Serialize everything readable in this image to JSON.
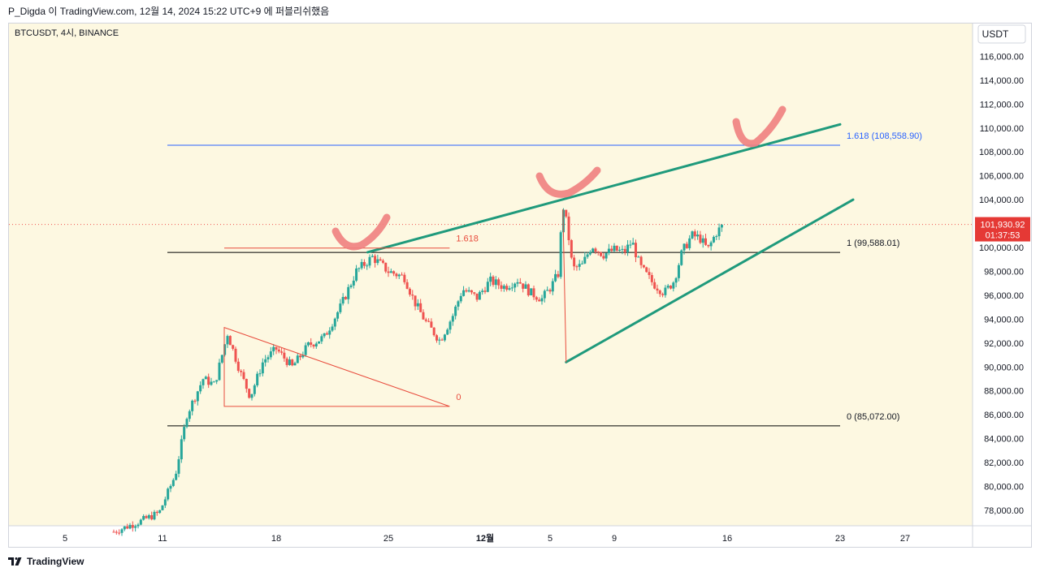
{
  "header": {
    "text": "P_Digda 이 TradingView.com, 12월 14, 2024 15:22 UTC+9 에 퍼블리쉬했음"
  },
  "footer": {
    "brand": "TradingView",
    "logo_icon": "tradingview-logo-icon"
  },
  "colors": {
    "background": "#fdf8e1",
    "up": "#26a69a",
    "down": "#ef5350",
    "trend": "#1f9a7c",
    "fib_blue": "#2962ff",
    "annotation": "#e84c3d",
    "check_mark": "#f08080",
    "price_badge": "#e53935"
  },
  "chart_data": {
    "type": "candlestick",
    "symbol_label": "BTCUSDT, 4시, BINANCE",
    "currency": "USDT",
    "ylim": [
      76000,
      118000
    ],
    "y_ticks": [
      {
        "value": 78000,
        "label": "78,000.00"
      },
      {
        "value": 80000,
        "label": "80,000.00"
      },
      {
        "value": 82000,
        "label": "82,000.00"
      },
      {
        "value": 84000,
        "label": "84,000.00"
      },
      {
        "value": 86000,
        "label": "86,000.00"
      },
      {
        "value": 88000,
        "label": "88,000.00"
      },
      {
        "value": 90000,
        "label": "90,000.00"
      },
      {
        "value": 92000,
        "label": "92,000.00"
      },
      {
        "value": 94000,
        "label": "94,000.00"
      },
      {
        "value": 96000,
        "label": "96,000.00"
      },
      {
        "value": 98000,
        "label": "98,000.00"
      },
      {
        "value": 100000,
        "label": "100,000.00"
      },
      {
        "value": 102000,
        "label": "102,000.00"
      },
      {
        "value": 104000,
        "label": "104,000.00"
      },
      {
        "value": 106000,
        "label": "106,000.00"
      },
      {
        "value": 108000,
        "label": "108,000.00"
      },
      {
        "value": 110000,
        "label": "110,000.00"
      },
      {
        "value": 112000,
        "label": "112,000.00"
      },
      {
        "value": 114000,
        "label": "114,000.00"
      },
      {
        "value": 116000,
        "label": "116,000.00"
      }
    ],
    "x_domain": [
      1,
      30
    ],
    "x_ticks": [
      {
        "day": 5,
        "label": "5",
        "bold": false
      },
      {
        "day": 11,
        "label": "11",
        "bold": false
      },
      {
        "day": 18,
        "label": "18",
        "bold": false
      },
      {
        "day": 25,
        "label": "25",
        "bold": false
      },
      {
        "day": 31,
        "label": "12월",
        "bold": true
      },
      {
        "day": 35,
        "label": "5",
        "bold": false
      },
      {
        "day": 39,
        "label": "9",
        "bold": false
      },
      {
        "day": 46,
        "label": "16",
        "bold": false
      },
      {
        "day": 53,
        "label": "23",
        "bold": false
      },
      {
        "day": 57,
        "label": "27",
        "bold": false
      }
    ],
    "current_price": {
      "value": 101930.92,
      "label": "101,930.92",
      "countdown": "01:37:53"
    },
    "candle_anchors": [
      {
        "day": 8.0,
        "price": 76200
      },
      {
        "day": 9.5,
        "price": 77000
      },
      {
        "day": 10.8,
        "price": 77800
      },
      {
        "day": 11.8,
        "price": 81000
      },
      {
        "day": 12.5,
        "price": 86000
      },
      {
        "day": 13.5,
        "price": 89000
      },
      {
        "day": 14.2,
        "price": 88500
      },
      {
        "day": 15.0,
        "price": 92800
      },
      {
        "day": 15.8,
        "price": 89500
      },
      {
        "day": 16.4,
        "price": 87500
      },
      {
        "day": 17.2,
        "price": 90500
      },
      {
        "day": 18.0,
        "price": 91500
      },
      {
        "day": 19.0,
        "price": 90000
      },
      {
        "day": 20.0,
        "price": 91800
      },
      {
        "day": 21.0,
        "price": 92500
      },
      {
        "day": 22.0,
        "price": 95000
      },
      {
        "day": 23.0,
        "price": 98000
      },
      {
        "day": 24.0,
        "price": 99200
      },
      {
        "day": 25.0,
        "price": 98000
      },
      {
        "day": 26.0,
        "price": 97500
      },
      {
        "day": 26.6,
        "price": 95500
      },
      {
        "day": 27.3,
        "price": 93800
      },
      {
        "day": 28.2,
        "price": 92200
      },
      {
        "day": 29.0,
        "price": 94300
      },
      {
        "day": 29.6,
        "price": 96500
      },
      {
        "day": 30.5,
        "price": 95800
      },
      {
        "day": 31.3,
        "price": 97200
      },
      {
        "day": 32.2,
        "price": 96700
      },
      {
        "day": 33.0,
        "price": 97300
      },
      {
        "day": 33.8,
        "price": 96200
      },
      {
        "day": 34.5,
        "price": 95700
      },
      {
        "day": 35.1,
        "price": 96800
      },
      {
        "day": 35.5,
        "price": 97800
      },
      {
        "day": 35.8,
        "price": 103600
      },
      {
        "day": 36.1,
        "price": 101500
      },
      {
        "day": 36.4,
        "price": 98200
      },
      {
        "day": 37.0,
        "price": 98500
      },
      {
        "day": 37.6,
        "price": 100200
      },
      {
        "day": 38.3,
        "price": 99400
      },
      {
        "day": 39.0,
        "price": 99800
      },
      {
        "day": 39.6,
        "price": 99600
      },
      {
        "day": 40.1,
        "price": 100500
      },
      {
        "day": 40.6,
        "price": 98400
      },
      {
        "day": 41.4,
        "price": 97000
      },
      {
        "day": 42.1,
        "price": 96200
      },
      {
        "day": 42.7,
        "price": 97200
      },
      {
        "day": 43.2,
        "price": 99600
      },
      {
        "day": 43.8,
        "price": 101000
      },
      {
        "day": 44.3,
        "price": 100800
      },
      {
        "day": 44.8,
        "price": 99800
      },
      {
        "day": 45.3,
        "price": 101200
      },
      {
        "day": 45.8,
        "price": 101930
      }
    ],
    "horizontal_levels": [
      {
        "price": 108558.9,
        "label": "1.618 (108,558.90)",
        "style": "fib-blue"
      },
      {
        "price": 99588.01,
        "label": "1 (99,588.01)",
        "style": "fib-black"
      },
      {
        "price": 85072.0,
        "label": "0 (85,072.00)",
        "style": "fib-black"
      }
    ],
    "trendlines": [
      {
        "name": "wedge-upper",
        "from": {
          "day": 23.7,
          "price": 99600
        },
        "to": {
          "day": 53.0,
          "price": 110300
        }
      },
      {
        "name": "wedge-lower",
        "from": {
          "day": 36.0,
          "price": 90400
        },
        "to": {
          "day": 53.8,
          "price": 104000
        }
      }
    ],
    "triangle": {
      "points": [
        {
          "day": 14.8,
          "price": 93300
        },
        {
          "day": 28.8,
          "price": 86700
        },
        {
          "day": 14.8,
          "price": 86700
        }
      ],
      "label_0": "0",
      "label_1618": "1.618",
      "top_line": {
        "from": 14.8,
        "to": 28.8,
        "price": 99950
      }
    },
    "drop_line": {
      "from": {
        "day": 35.8,
        "price": 103200
      },
      "to": {
        "day": 36.0,
        "price": 90400
      }
    },
    "checkmarks": [
      {
        "near": "triangle-top-touch"
      },
      {
        "near": "wedge-upper-touch"
      },
      {
        "near": "target-1618"
      }
    ]
  }
}
